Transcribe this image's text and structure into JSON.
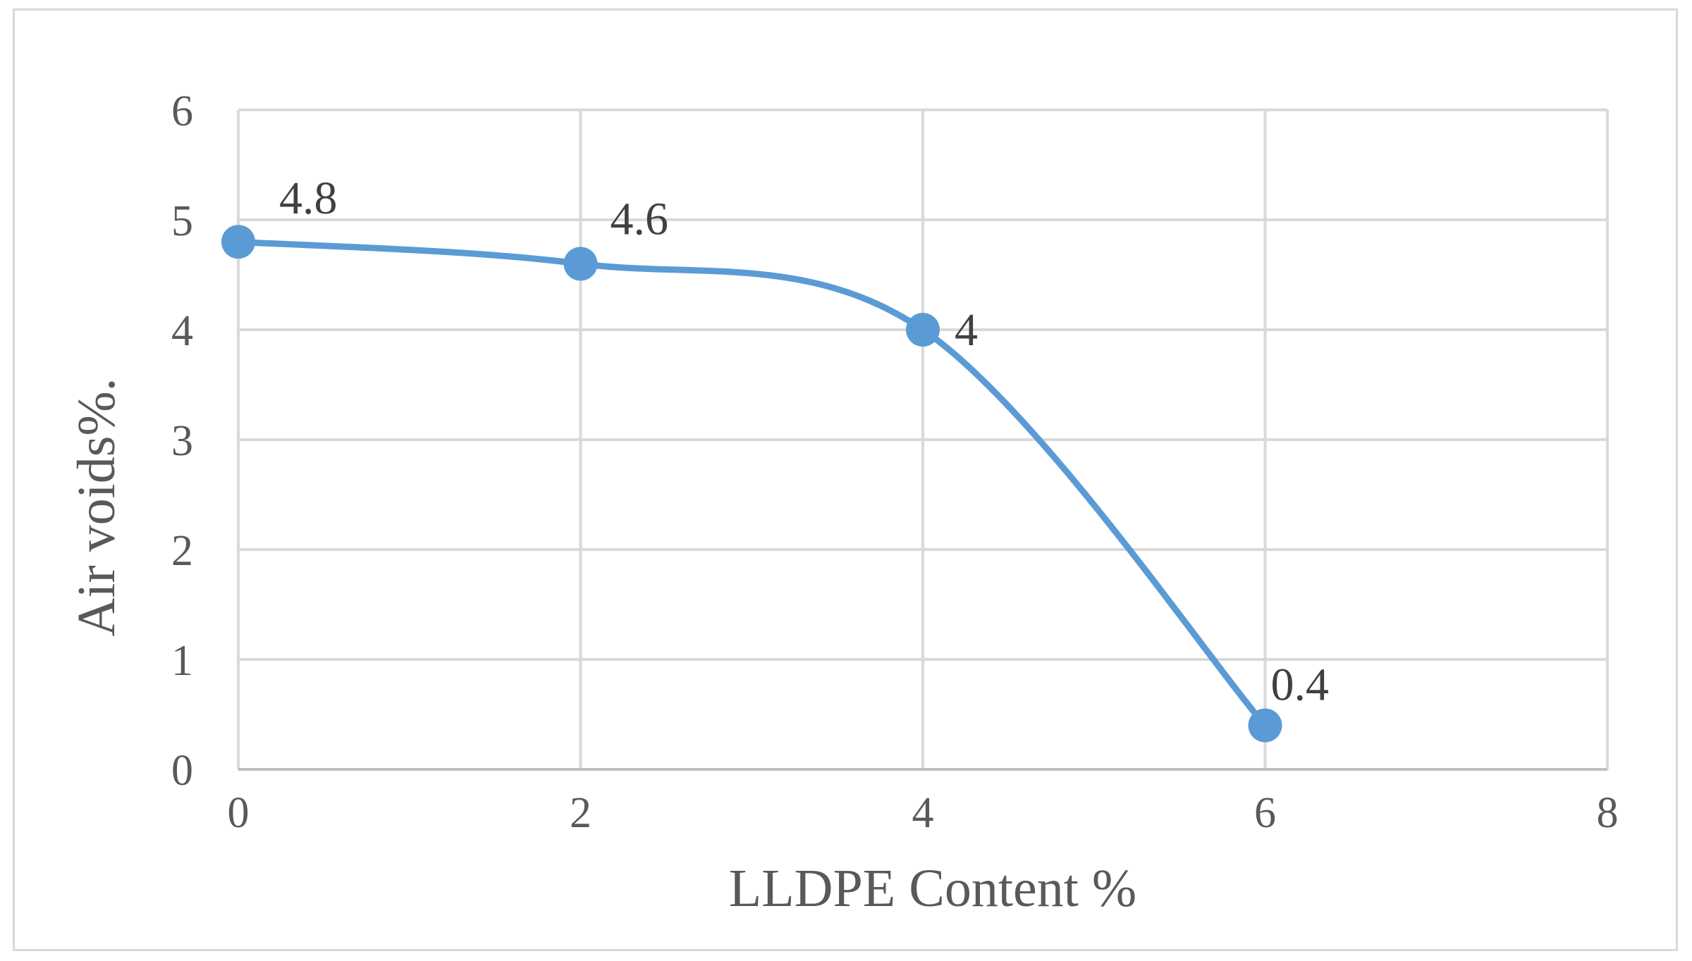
{
  "chart_data": {
    "type": "scatter",
    "title": "",
    "xlabel": "LLDPE Content %",
    "ylabel": "Air voids%.",
    "xlim": [
      0,
      8
    ],
    "ylim": [
      0,
      6
    ],
    "x_ticks": [
      "0",
      "2",
      "4",
      "6",
      "8"
    ],
    "y_ticks": [
      "0",
      "1",
      "2",
      "3",
      "4",
      "5",
      "6"
    ],
    "grid": true,
    "legend": "none",
    "line_style": "smooth",
    "series_color": "#5b9bd5",
    "points": [
      {
        "x": 0,
        "y": 4.8,
        "label": "4.8"
      },
      {
        "x": 2,
        "y": 4.6,
        "label": "4.6"
      },
      {
        "x": 4,
        "y": 4.0,
        "label": "4"
      },
      {
        "x": 6,
        "y": 0.4,
        "label": "0.4"
      }
    ]
  }
}
